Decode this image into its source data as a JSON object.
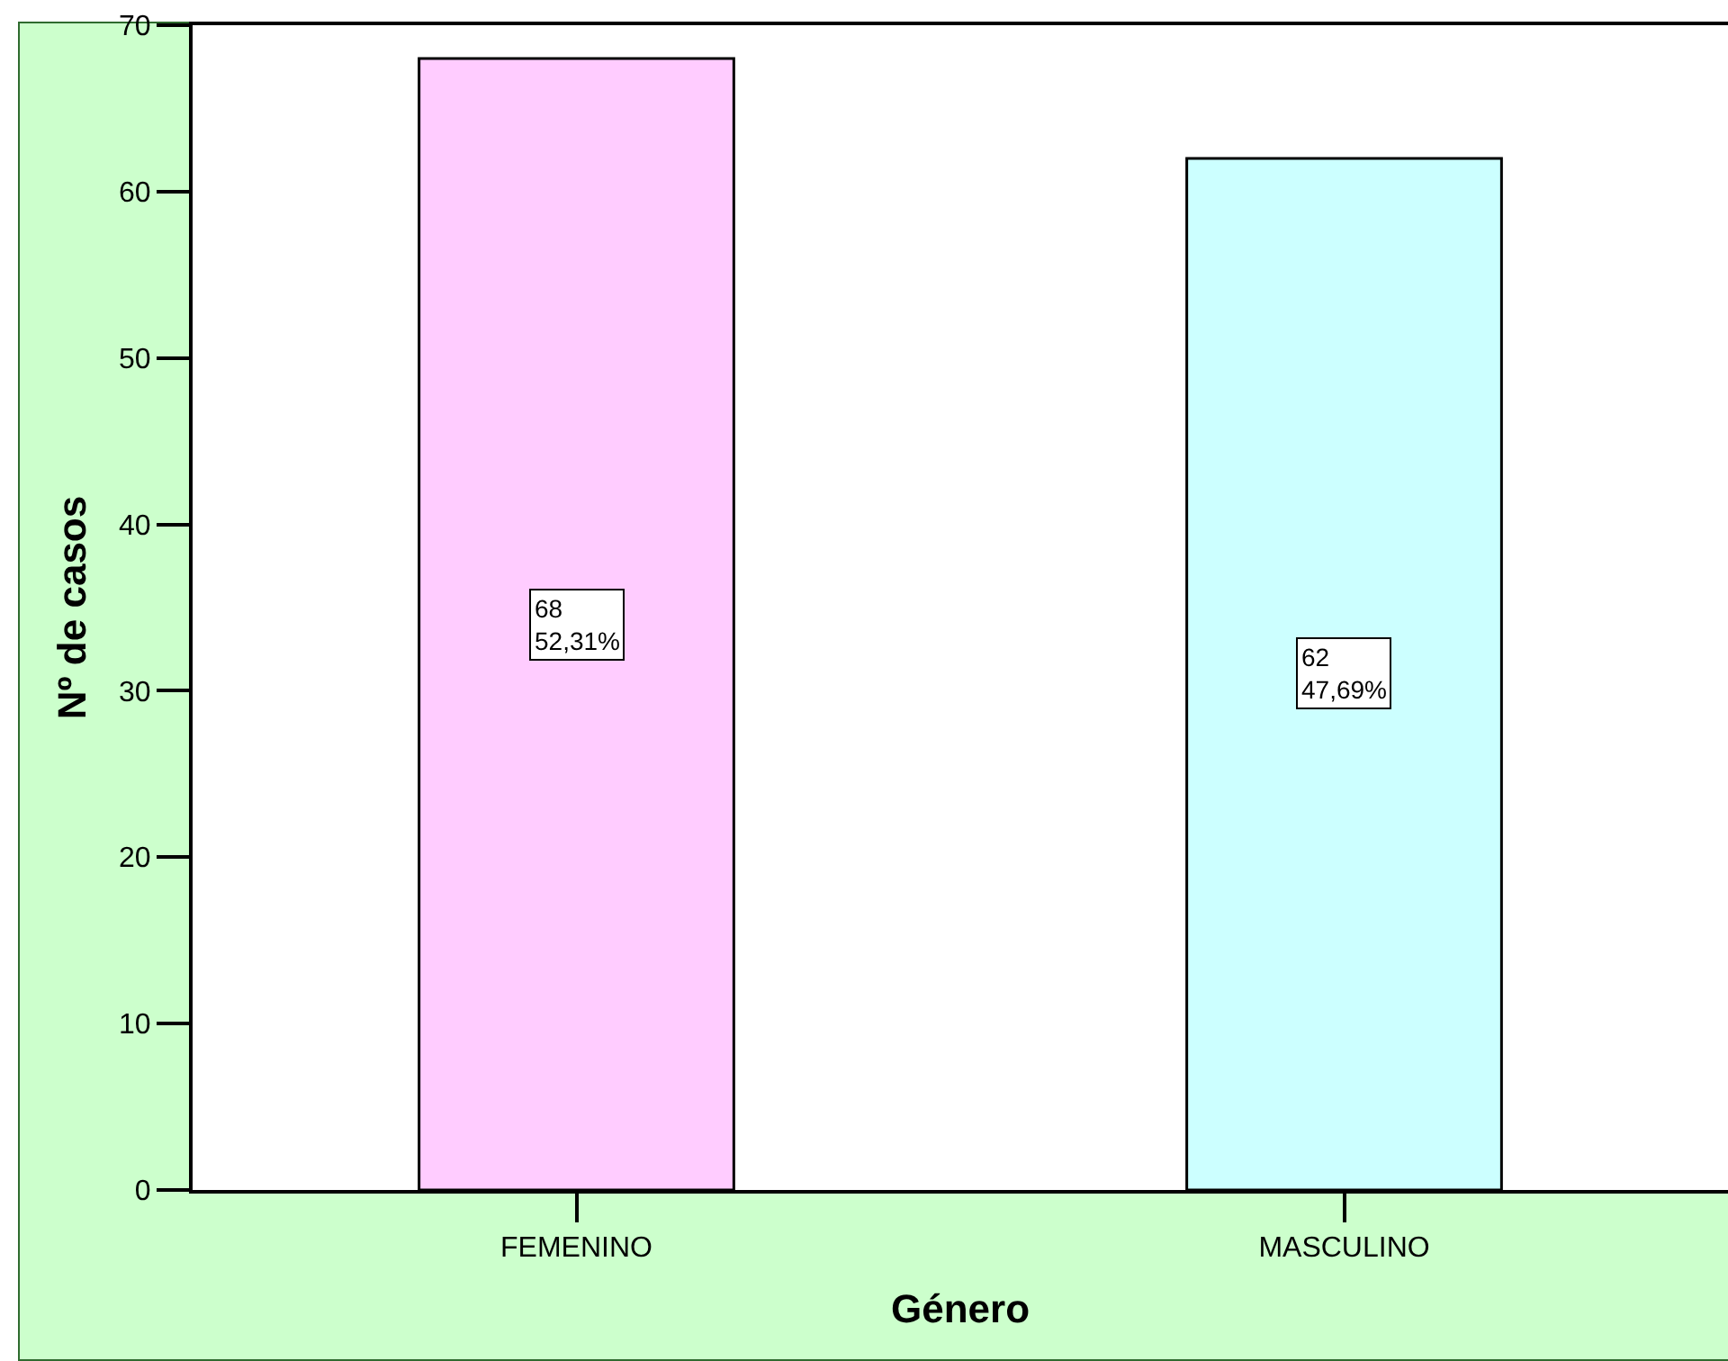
{
  "chart_data": {
    "type": "bar",
    "xlabel": "Género",
    "ylabel": "Nº de casos",
    "categories": [
      "FEMENINO",
      "MASCULINO"
    ],
    "values": [
      68,
      62
    ],
    "colors": [
      "#ffccff",
      "#ccffff"
    ],
    "value_labels": [
      "68\n52,31%",
      "62\n47,69%"
    ],
    "ylim": [
      0,
      70
    ],
    "yticks": [
      0,
      10,
      20,
      30,
      40,
      50,
      60,
      70
    ],
    "grid": false,
    "legend": false
  }
}
